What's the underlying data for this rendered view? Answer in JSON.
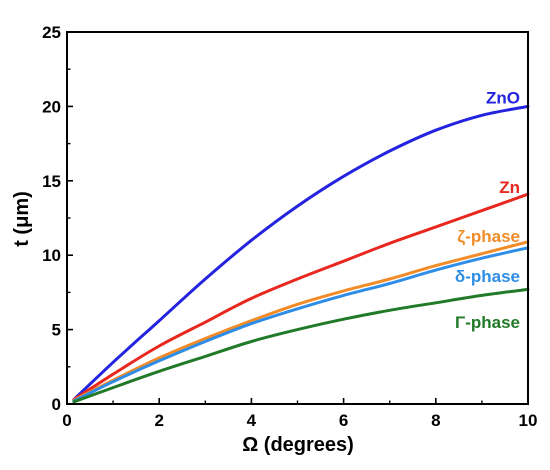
{
  "chart_data": {
    "type": "line",
    "title": "",
    "xlabel": "Ω (degrees)",
    "ylabel": "t (μm)",
    "xlim": [
      0,
      10
    ],
    "ylim": [
      0,
      25
    ],
    "xticks": [
      0,
      2,
      4,
      6,
      8,
      10
    ],
    "yticks": [
      0,
      5,
      10,
      15,
      20,
      25
    ],
    "grid": false,
    "legend": "inline labels at right end of each curve",
    "x": [
      0.15,
      1,
      2,
      3,
      4,
      5,
      6,
      7,
      8,
      9,
      10
    ],
    "series": [
      {
        "name": "ZnO",
        "color": "#2323e0",
        "values": [
          0.3,
          2.8,
          5.6,
          8.4,
          11.0,
          13.3,
          15.3,
          17.0,
          18.4,
          19.4,
          20.0
        ]
      },
      {
        "name": "Zn",
        "color": "#e8281e",
        "values": [
          0.3,
          2.0,
          3.9,
          5.5,
          7.1,
          8.4,
          9.6,
          10.8,
          11.9,
          13.0,
          14.1
        ]
      },
      {
        "name": "ζ-phase",
        "color": "#f28c28",
        "values": [
          0.25,
          1.6,
          3.1,
          4.4,
          5.6,
          6.7,
          7.6,
          8.4,
          9.3,
          10.1,
          10.9
        ]
      },
      {
        "name": "δ-phase",
        "color": "#2e8de6",
        "values": [
          0.2,
          1.5,
          2.9,
          4.2,
          5.4,
          6.4,
          7.3,
          8.1,
          9.0,
          9.8,
          10.5
        ]
      },
      {
        "name": "Γ-phase",
        "color": "#217a27",
        "values": [
          0.15,
          1.1,
          2.2,
          3.2,
          4.2,
          5.0,
          5.7,
          6.3,
          6.8,
          7.3,
          7.7
        ]
      }
    ],
    "label_y": [
      20.6,
      14.6,
      11.3,
      8.6,
      5.5
    ]
  }
}
